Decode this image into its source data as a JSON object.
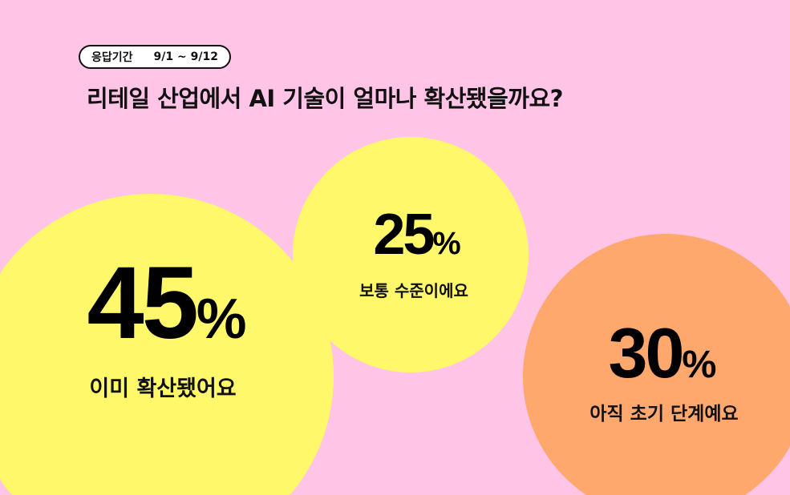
{
  "header": {
    "period_label": "응답기간",
    "period_value": "9/1 ~ 9/12",
    "title": "리테일 산업에서 AI 기술이 얼마나 확산됐을까요?"
  },
  "chart_data": {
    "type": "bubble",
    "title": "리테일 산업에서 AI 기술이 얼마나 확산됐을까요?",
    "unit": "%",
    "categories": [
      "이미 확산됐어요",
      "보통 수준이에요",
      "아직 초기 단계예요"
    ],
    "values": [
      45,
      25,
      30
    ],
    "value_labels": [
      "45",
      "25",
      "30"
    ],
    "colors": [
      "#FFF86A",
      "#FFF86A",
      "#FFA86E"
    ],
    "background": "#FFC4E6"
  }
}
